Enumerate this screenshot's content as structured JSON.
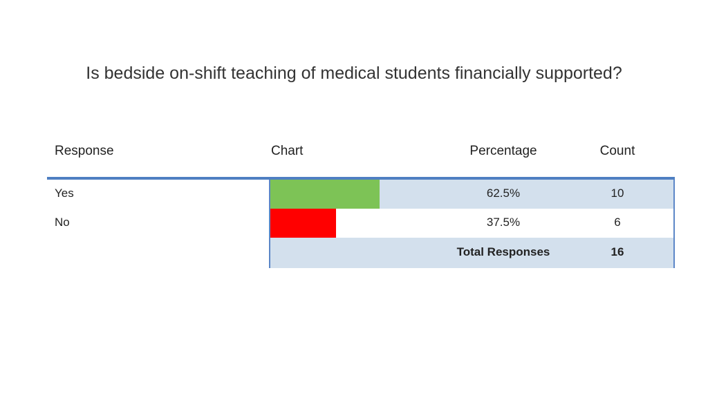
{
  "title": "Is bedside on-shift teaching of medical students financially supported?",
  "headers": {
    "response": "Response",
    "chart": "Chart",
    "percentage": "Percentage",
    "count": "Count"
  },
  "rows": [
    {
      "label": "Yes",
      "percentage": "62.5%",
      "count": "10",
      "color": "#7dc356"
    },
    {
      "label": "No",
      "percentage": "37.5%",
      "count": "6",
      "color": "#ff0000"
    }
  ],
  "total": {
    "label": "Total Responses",
    "count": "16"
  },
  "colors": {
    "rule": "#4f7fc2",
    "shade": "#d3e0ed"
  },
  "chart_data": {
    "type": "bar",
    "categories": [
      "Yes",
      "No"
    ],
    "values": [
      62.5,
      37.5
    ],
    "counts": [
      10,
      6
    ],
    "title": "Is bedside on-shift teaching of medical students financially supported?",
    "xlabel": "",
    "ylabel": "",
    "ylim": [
      0,
      100
    ]
  }
}
